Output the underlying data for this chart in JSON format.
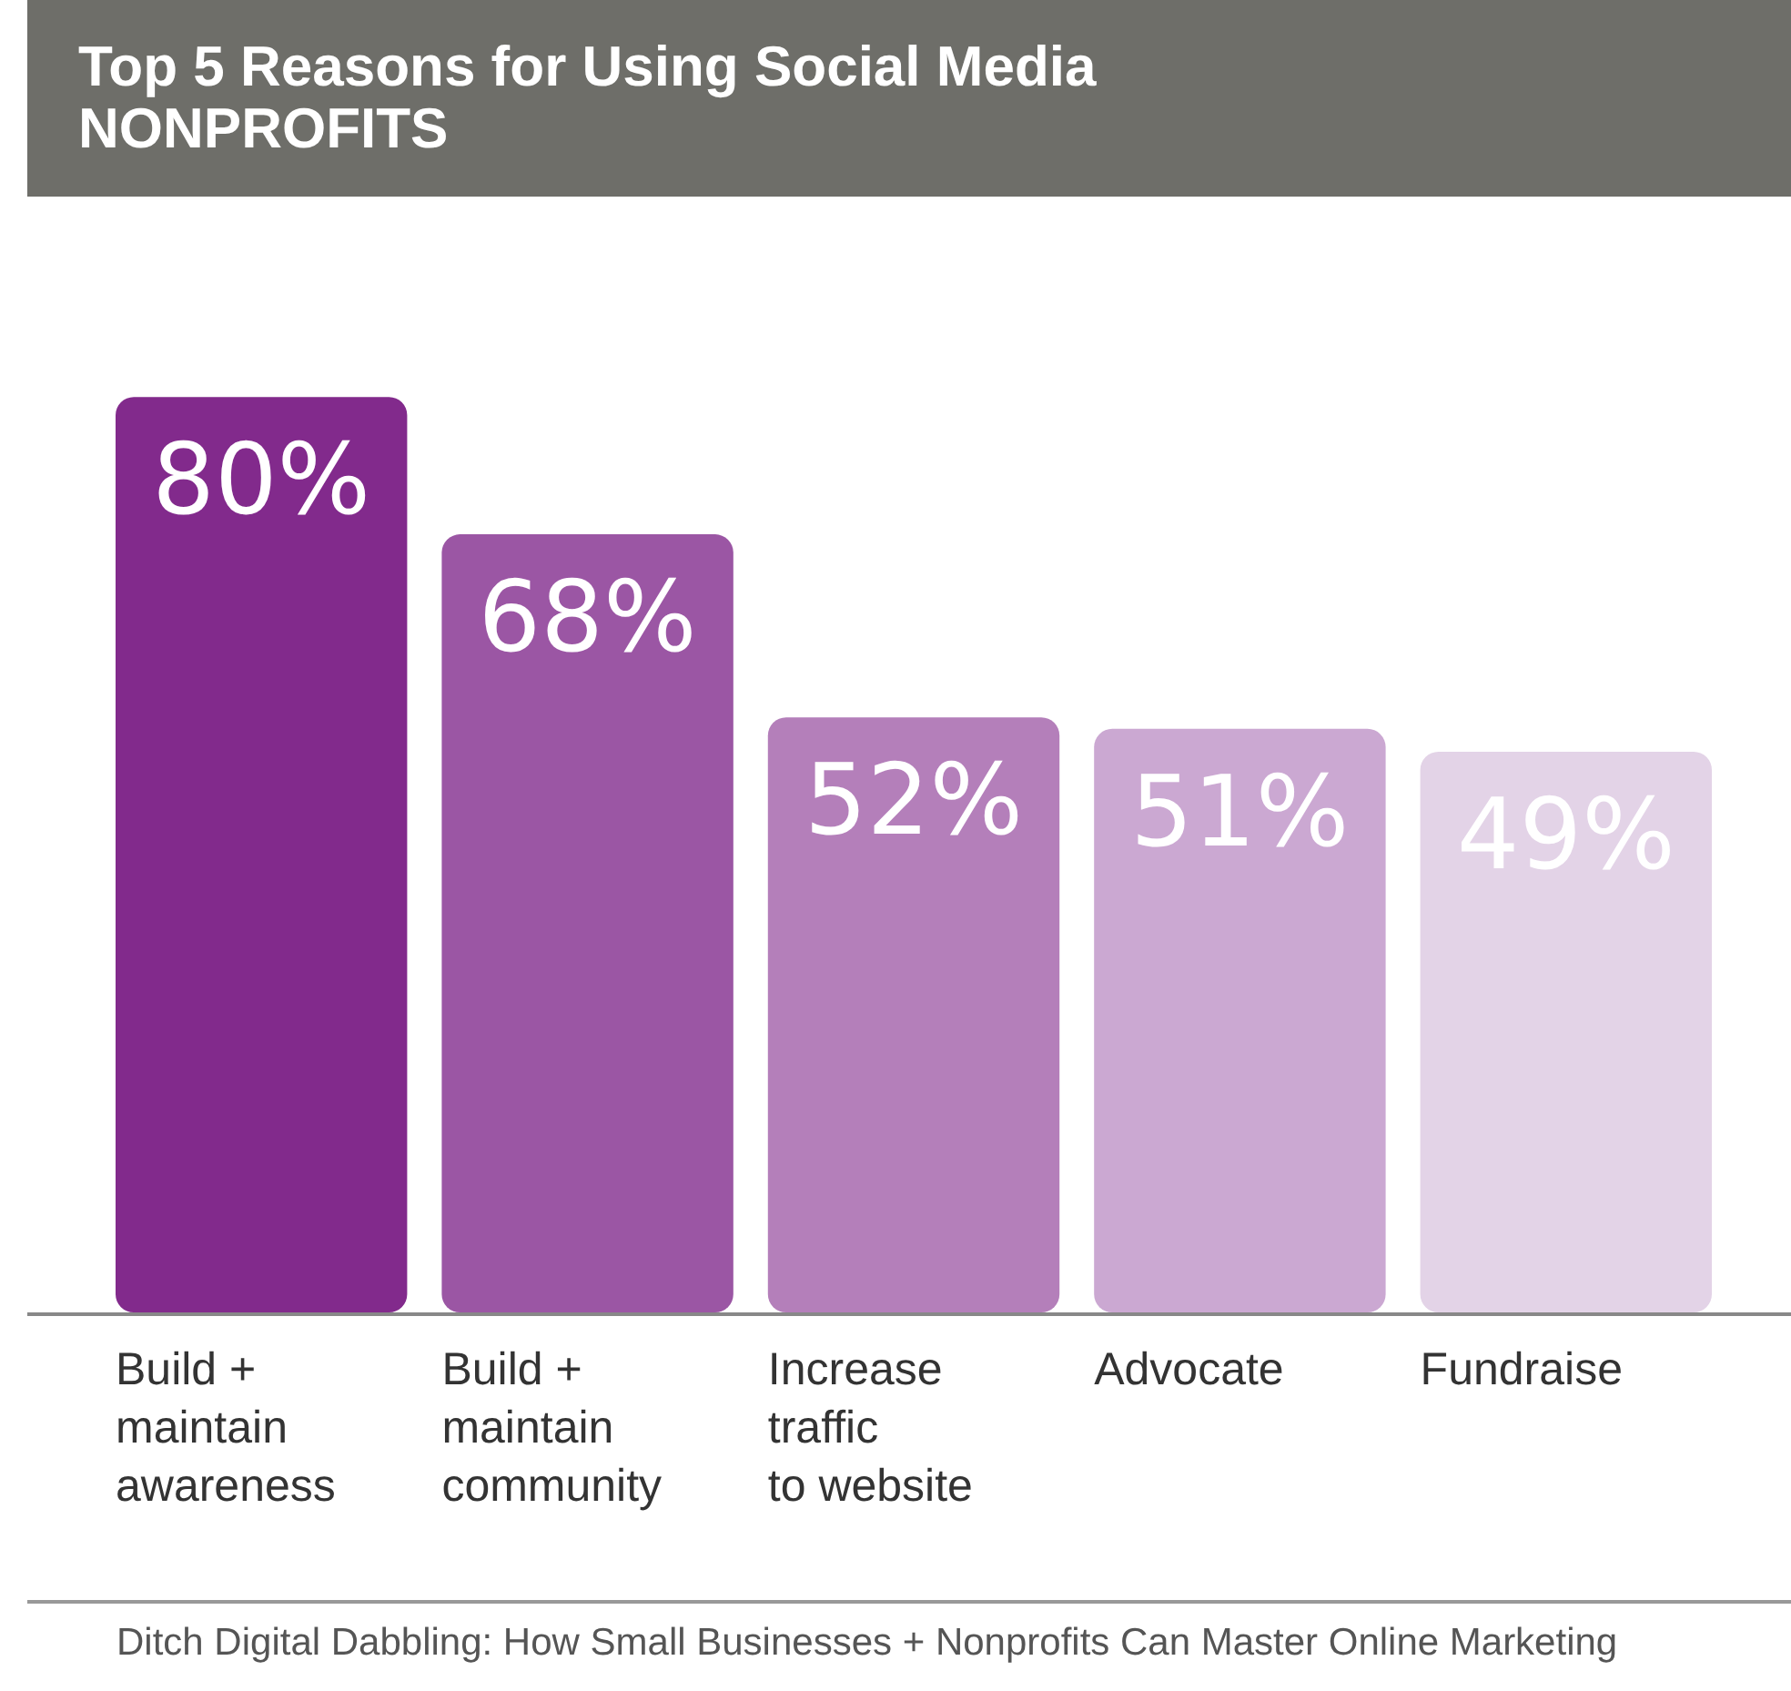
{
  "chart_data": {
    "type": "bar",
    "title": "Top 5 Reasons for Using Social Media",
    "subtitle": "NONPROFITS",
    "categories": [
      "Build +\nmaintain\nawareness",
      "Build +\nmaintain\ncommunity",
      "Increase\ntraffic\nto website",
      "Advocate",
      "Fundraise"
    ],
    "values": [
      80,
      68,
      52,
      51,
      49
    ],
    "colors": [
      "#822a8c",
      "#9b56a4",
      "#b47fba",
      "#cba8d2",
      "#e3d3e7"
    ],
    "value_labels": [
      "80%",
      "68%",
      "52%",
      "51%",
      "49%"
    ],
    "grid": false,
    "legend": false,
    "annotations": [
      "Ditch Digital Dabbling: How Small Businesses + Nonprofits Can Master Online Marketing"
    ]
  }
}
